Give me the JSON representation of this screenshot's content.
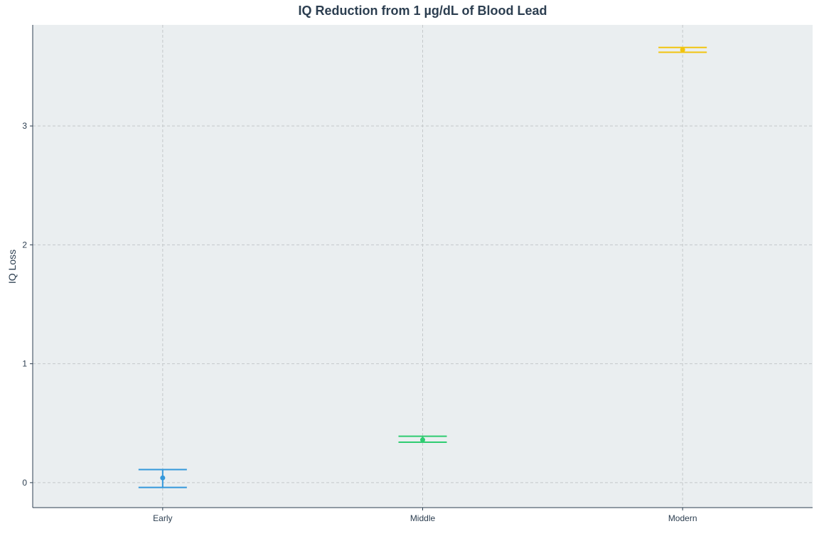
{
  "chart_data": {
    "type": "scatter",
    "title": "IQ Reduction from 1 µg/dL of Blood Lead",
    "xlabel": "",
    "ylabel": "IQ Loss",
    "categories": [
      "Early",
      "Middle",
      "Modern"
    ],
    "ylim": [
      -0.21,
      3.85
    ],
    "yticks": [
      0,
      1,
      2,
      3
    ],
    "grid": true,
    "points": [
      {
        "category": "Early",
        "value": 0.04,
        "lower": -0.04,
        "upper": 0.11,
        "color": "#3498db"
      },
      {
        "category": "Middle",
        "value": 0.36,
        "lower": 0.34,
        "upper": 0.39,
        "color": "#2ecc71"
      },
      {
        "category": "Modern",
        "value": 3.64,
        "lower": 3.62,
        "upper": 3.66,
        "color": "#f1c40f"
      }
    ]
  },
  "colors": {
    "panel_background": "#eaeef0",
    "grid": "#c4c8ca",
    "axis": "#2c3e50"
  }
}
